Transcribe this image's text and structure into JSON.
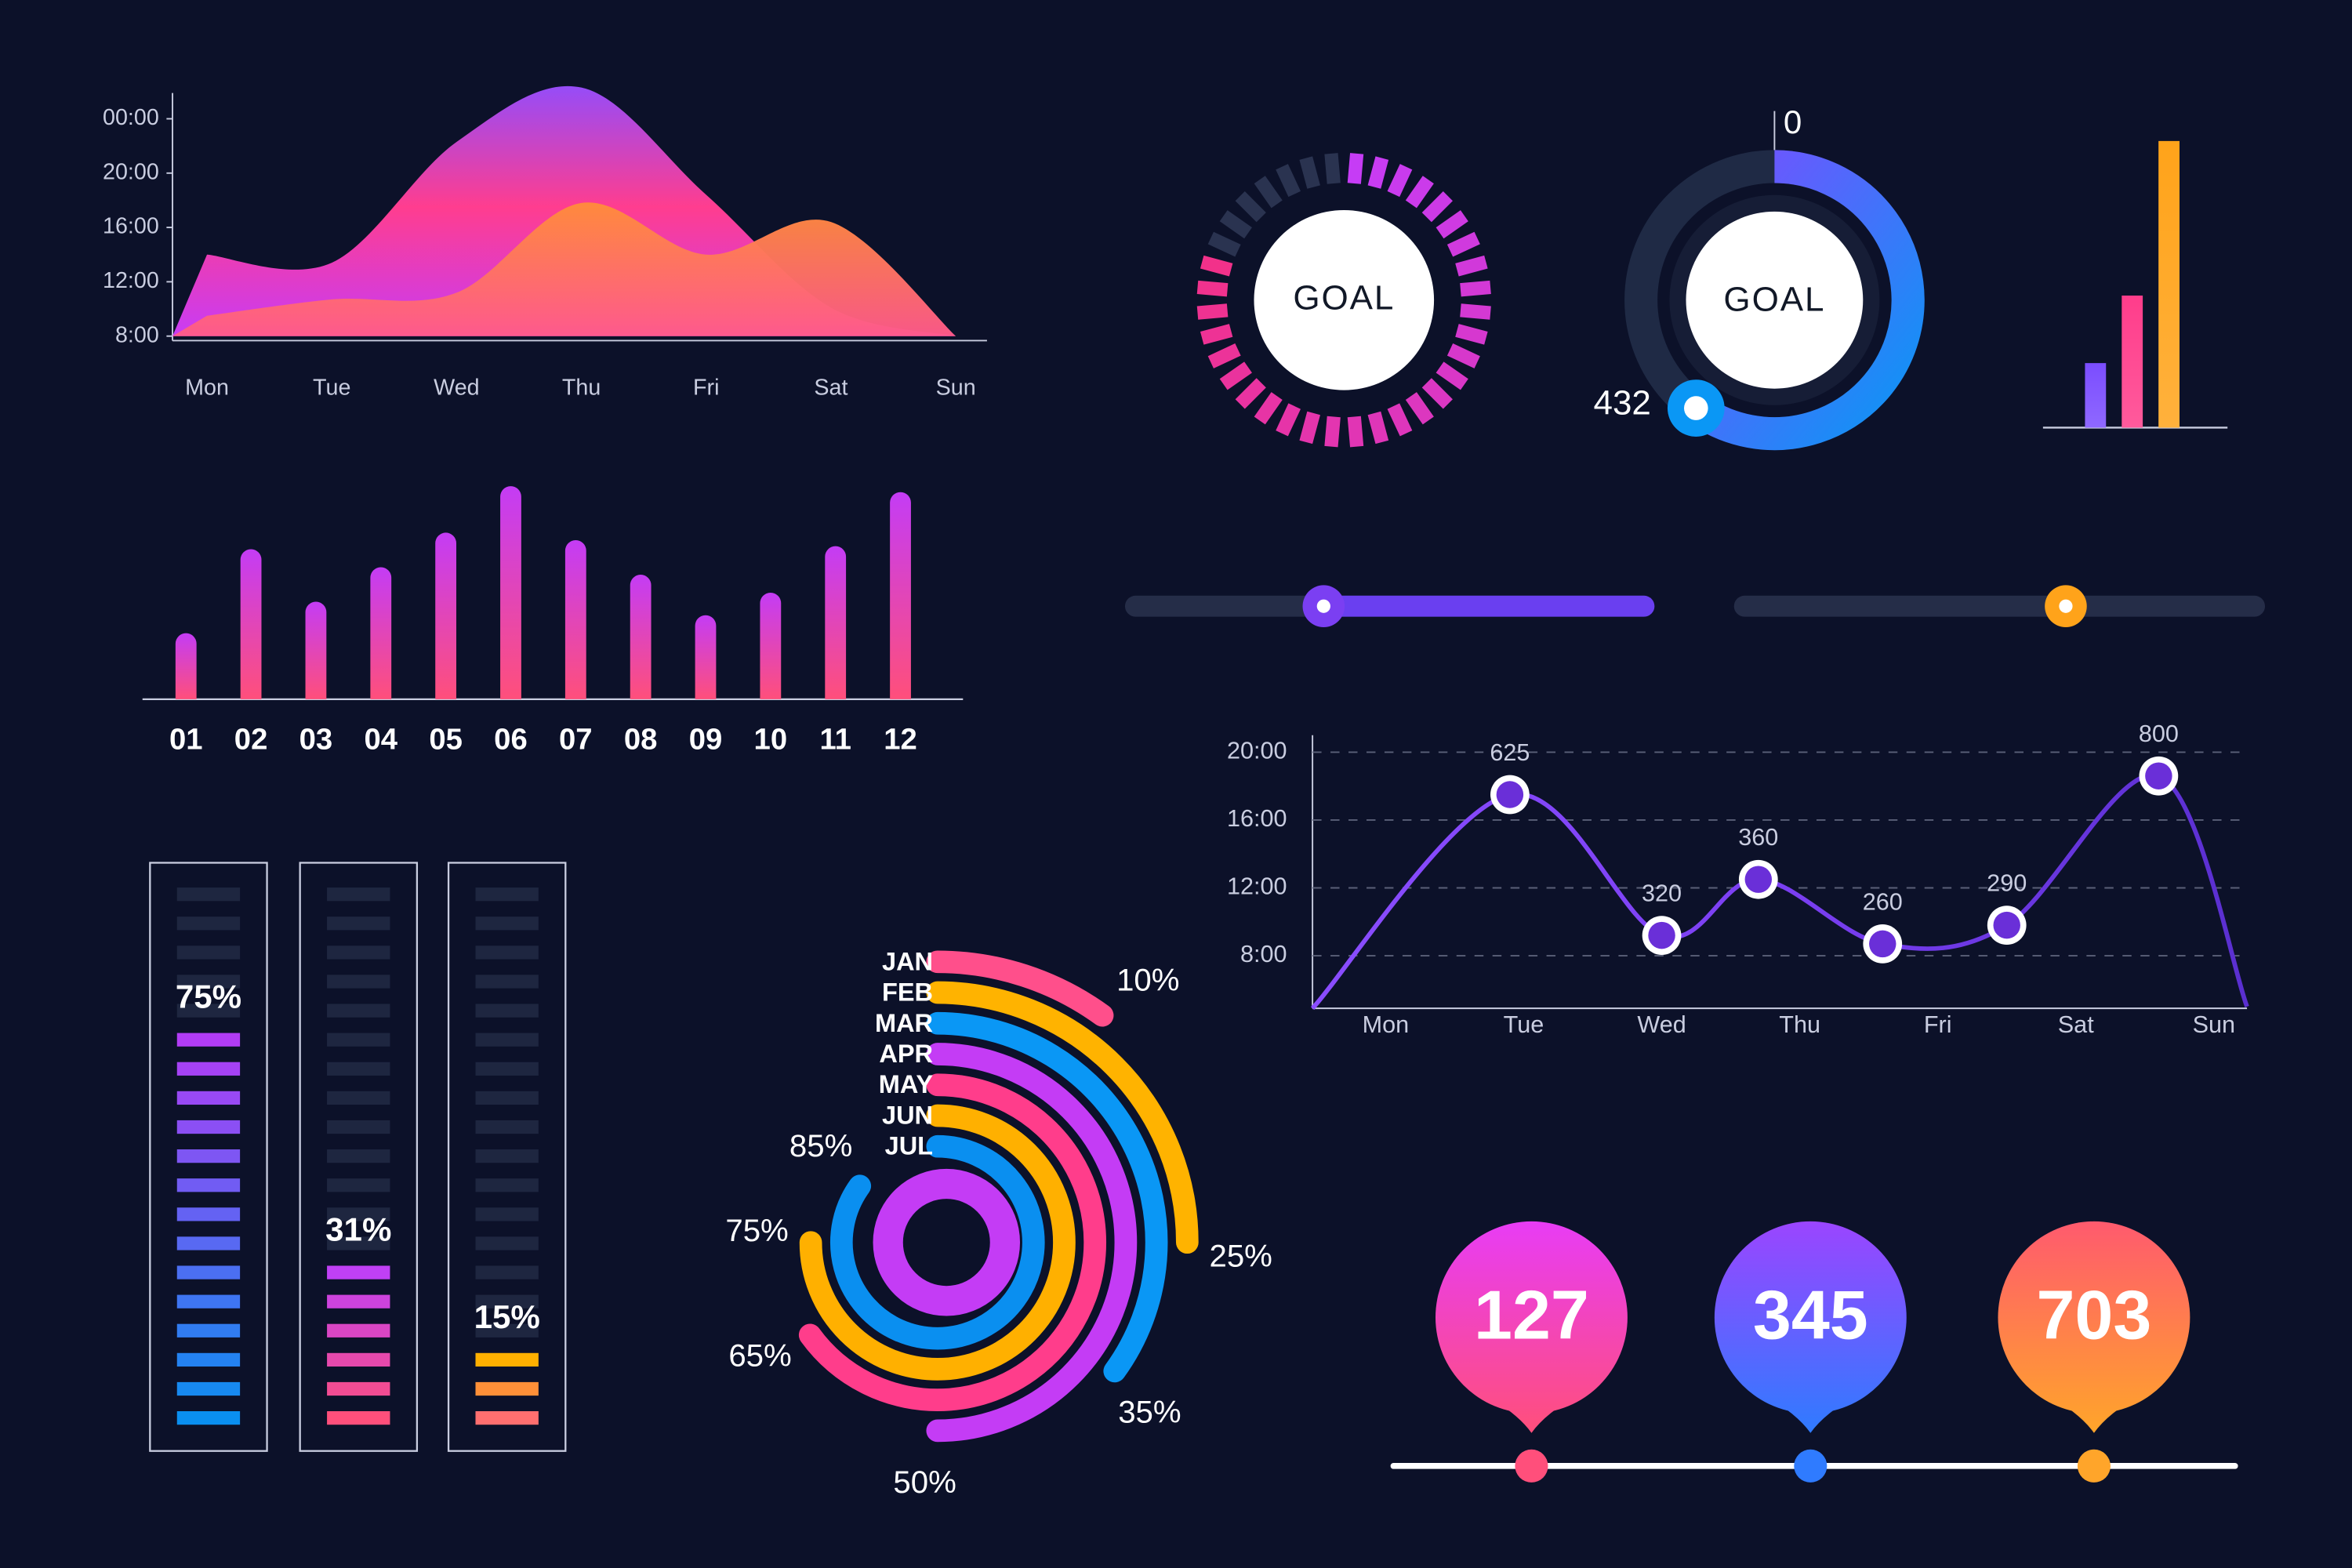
{
  "chart_data": [
    {
      "type": "area",
      "categories": [
        "Mon",
        "Tue",
        "Wed",
        "Thu",
        "Fri",
        "Sat",
        "Sun"
      ],
      "series": [
        {
          "color": "#ff3d9a",
          "gradient": [
            "#8f4dff",
            "#ff3d8f",
            "#c83cf5"
          ],
          "values": [
            14,
            13.4,
            22.3,
            26.3,
            18.4,
            10.1,
            8
          ]
        },
        {
          "color": "#ff9a1f",
          "gradient": [
            "#ffae12",
            "#ff8a3d",
            "#ff5a8a"
          ],
          "values": [
            9.5,
            10.7,
            11.2,
            17.8,
            14,
            16.4,
            8
          ]
        }
      ],
      "ylim": [
        8,
        27
      ],
      "yticks": [
        {
          "value": 24,
          "label": "00:00"
        },
        {
          "value": 20,
          "label": "20:00"
        },
        {
          "value": 16,
          "label": "16:00"
        },
        {
          "value": 12,
          "label": "12:00"
        },
        {
          "value": 8,
          "label": "8:00"
        }
      ]
    },
    {
      "type": "bar",
      "categories": [
        "01",
        "02",
        "03",
        "04",
        "05",
        "06",
        "07",
        "08",
        "09",
        "10",
        "11",
        "12"
      ],
      "values": [
        44,
        100,
        65,
        88,
        111,
        142,
        106,
        83,
        56,
        71,
        102,
        138
      ],
      "ylim": [
        0,
        150
      ],
      "gradient": [
        "#c43cf5",
        "#ff4f7b"
      ]
    },
    {
      "type": "segmented-gauge",
      "title": "GOAL",
      "value": 80,
      "ylim": [
        0,
        100
      ],
      "gradient": [
        "#c63cf5",
        "#ff2e6b"
      ],
      "track_color": "#2a3350"
    },
    {
      "type": "gauge",
      "title": "GOAL",
      "value": 432,
      "ylim": [
        0,
        720
      ],
      "gradient": [
        "#7b4dff",
        "#0a97f5"
      ],
      "track_color": "#1f2a45"
    },
    {
      "type": "bar",
      "values": [
        43,
        88,
        191
      ],
      "ylim": [
        0,
        200
      ],
      "colors": [
        "#7b4dff",
        "#ff3d8b",
        "#ffa31a"
      ]
    },
    {
      "type": "slider",
      "values": [
        37,
        63
      ],
      "ylim": [
        0,
        100
      ],
      "colors": [
        "#6a3ff0",
        "#ff9a1f"
      ],
      "fill_side": [
        "right",
        "left"
      ]
    },
    {
      "type": "line",
      "x": [
        -0.53,
        0.9,
        2,
        2.7,
        3.6,
        4.5,
        5.6,
        6.24
      ],
      "xlim": [
        -0.53,
        6.24
      ],
      "xticks": [
        {
          "value": 0,
          "label": "Mon"
        },
        {
          "value": 1,
          "label": "Tue"
        },
        {
          "value": 2,
          "label": "Wed"
        },
        {
          "value": 3,
          "label": "Thu"
        },
        {
          "value": 4,
          "label": "Fri"
        },
        {
          "value": 5,
          "label": "Sat"
        },
        {
          "value": 6,
          "label": "Sun"
        }
      ],
      "ylim": [
        4.9,
        21
      ],
      "yticks": [
        {
          "value": 20,
          "label": "20:00"
        },
        {
          "value": 16,
          "label": "16:00"
        },
        {
          "value": 12,
          "label": "12:00"
        },
        {
          "value": 8,
          "label": "8:00"
        }
      ],
      "grid": true,
      "series": [
        {
          "color": "#7b3ff2",
          "values": [
            4.9,
            17.5,
            9.2,
            12.5,
            8.7,
            9.8,
            18.6,
            5
          ],
          "point_labels": [
            null,
            "625",
            "320",
            "360",
            "260",
            "290",
            "800",
            null
          ]
        }
      ]
    },
    {
      "type": "level",
      "values": [
        75,
        31,
        15
      ],
      "value_labels": [
        "75%",
        "31%",
        "15%"
      ],
      "ylim": [
        0,
        100
      ],
      "colors": [
        [
          "#b23cf5",
          "#0a8ff0"
        ],
        [
          "#c040f5",
          "#ff4f7b"
        ],
        [
          "#ffb000",
          "#ff6f6f"
        ]
      ]
    },
    {
      "type": "radial",
      "categories": [
        "JAN",
        "FEB",
        "MAR",
        "APR",
        "MAY",
        "JUN",
        "JUL"
      ],
      "values": [
        10,
        25,
        35,
        50,
        65,
        75,
        85
      ],
      "value_labels": [
        "10%",
        "25%",
        "35%",
        "50%",
        "65%",
        "75%",
        "85%"
      ],
      "ylim": [
        0,
        100
      ],
      "colors": [
        "#ff4f8b",
        "#ffb300",
        "#0a97f5",
        "#c43cf5",
        "#ff3d8b",
        "#ffb000",
        "#0a8ff0"
      ]
    },
    {
      "type": "pins",
      "values": [
        127,
        345,
        703
      ],
      "colors": [
        [
          "#e83cf5",
          "#ff4f7b"
        ],
        [
          "#9b45ff",
          "#2f7bff"
        ],
        [
          "#ff5a6e",
          "#ffa52a"
        ]
      ]
    }
  ]
}
